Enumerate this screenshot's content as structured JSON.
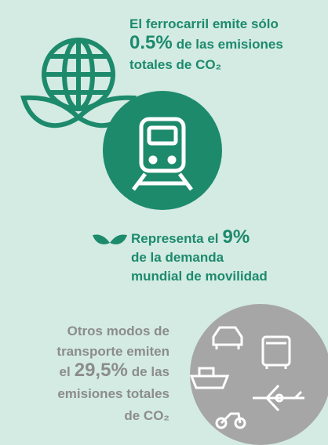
{
  "rail_emissions": {
    "line1": "El ferrocarril emite sólo",
    "highlight": "0.5%",
    "line2_rest": "de las emisiones",
    "line3": "totales de CO₂"
  },
  "rail_demand": {
    "line1_start": "Representa el",
    "highlight": "9%",
    "line2": "de la demanda",
    "line3": "mundial de movilidad"
  },
  "other_modes": {
    "line1": "Otros modos de",
    "line2": "transporte emiten",
    "line3_start": "el",
    "highlight": "29,5%",
    "line3_end": "de las",
    "line4": "emisiones totales",
    "line5": "de CO₂"
  }
}
